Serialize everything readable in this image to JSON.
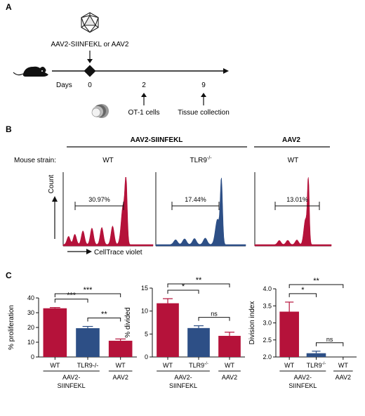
{
  "panelA": {
    "label": "A",
    "virus_label": "AAV2-SIINFEKL or AAV2",
    "days_label": "Days",
    "timepoints": [
      {
        "day": "0"
      },
      {
        "day": "2",
        "event": "OT-1 cells"
      },
      {
        "day": "9",
        "event": "Tissue collection"
      }
    ]
  },
  "panelB": {
    "label": "B",
    "strain_label": "Mouse strain:",
    "group_labels": [
      "AAV2-SIINFEKL",
      "AAV2"
    ],
    "y_label": "Count",
    "x_label": "CellTrace violet",
    "histograms": [
      {
        "strain": "WT",
        "percent": "30.97%",
        "color": "#b5123a"
      },
      {
        "strain": "TLR9",
        "strain_sup": "-/-",
        "percent": "17.44%",
        "color": "#2d4f86"
      },
      {
        "strain": "WT",
        "percent": "13.01%",
        "color": "#b5123a"
      }
    ]
  },
  "panelC": {
    "label": "C",
    "colors": {
      "wt": "#b5123a",
      "tlr9": "#2d4f86"
    }
  },
  "chart_data": [
    {
      "type": "bar",
      "ylabel": "% proliferation",
      "ylim": [
        0,
        40
      ],
      "yticks": [
        0,
        10,
        20,
        30,
        40
      ],
      "categories": [
        "WT",
        "TLR9-/-",
        "WT"
      ],
      "values": [
        33,
        19.5,
        11
      ],
      "errors": [
        0.5,
        1.2,
        1.2
      ],
      "groups": [
        {
          "label": "AAV2-\nSIINFEKL",
          "span": [
            0,
            1
          ]
        },
        {
          "label": "AAV2",
          "span": [
            2,
            2
          ]
        }
      ],
      "significance": [
        {
          "from": 0,
          "to": 1,
          "label": "***"
        },
        {
          "from": 1,
          "to": 2,
          "label": "**"
        },
        {
          "from": 0,
          "to": 2,
          "label": "***"
        }
      ]
    },
    {
      "type": "bar",
      "ylabel": "% divided",
      "ylim": [
        0,
        15
      ],
      "yticks": [
        0,
        5,
        10,
        15
      ],
      "categories": [
        "WT",
        "TLR9-/-",
        "WT"
      ],
      "values": [
        11.7,
        6.3,
        4.6
      ],
      "errors": [
        1.0,
        0.5,
        0.8
      ],
      "groups": [
        {
          "label": "AAV2-\nSIINFEKL",
          "span": [
            0,
            1
          ]
        },
        {
          "label": "AAV2",
          "span": [
            2,
            2
          ]
        }
      ],
      "significance": [
        {
          "from": 0,
          "to": 1,
          "label": "*"
        },
        {
          "from": 1,
          "to": 2,
          "label": "ns"
        },
        {
          "from": 0,
          "to": 2,
          "label": "**"
        }
      ]
    },
    {
      "type": "bar",
      "ylabel": "Division index",
      "ylim": [
        2.0,
        4.0
      ],
      "yticks": [
        2.0,
        2.5,
        3.0,
        3.5,
        4.0
      ],
      "categories": [
        "WT",
        "TLR9-/-",
        "WT"
      ],
      "values": [
        3.33,
        2.11,
        2.0
      ],
      "errors": [
        0.28,
        0.06,
        0
      ],
      "groups": [
        {
          "label": "AAV2-\nSIINFEKL",
          "span": [
            0,
            1
          ]
        },
        {
          "label": "AAV2",
          "span": [
            2,
            2
          ]
        }
      ],
      "significance": [
        {
          "from": 0,
          "to": 1,
          "label": "*"
        },
        {
          "from": 1,
          "to": 2,
          "label": "ns"
        },
        {
          "from": 0,
          "to": 2,
          "label": "**"
        }
      ]
    }
  ]
}
